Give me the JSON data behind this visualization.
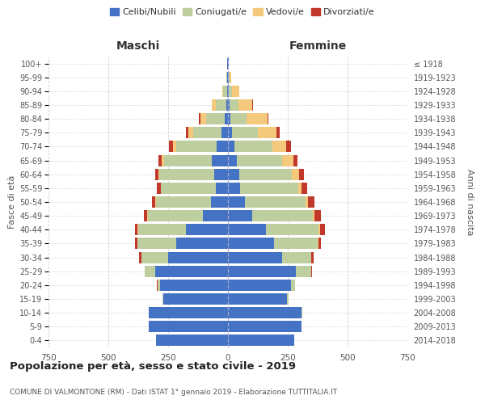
{
  "age_groups": [
    "0-4",
    "5-9",
    "10-14",
    "15-19",
    "20-24",
    "25-29",
    "30-34",
    "35-39",
    "40-44",
    "45-49",
    "50-54",
    "55-59",
    "60-64",
    "65-69",
    "70-74",
    "75-79",
    "80-84",
    "85-89",
    "90-94",
    "95-99",
    "100+"
  ],
  "birth_years": [
    "2014-2018",
    "2009-2013",
    "2004-2008",
    "1999-2003",
    "1994-1998",
    "1989-1993",
    "1984-1988",
    "1979-1983",
    "1974-1978",
    "1969-1973",
    "1964-1968",
    "1959-1963",
    "1954-1958",
    "1949-1953",
    "1944-1948",
    "1939-1943",
    "1934-1938",
    "1929-1933",
    "1924-1928",
    "1919-1923",
    "≤ 1918"
  ],
  "maschi": {
    "celibi": [
      300,
      330,
      330,
      270,
      285,
      305,
      250,
      215,
      175,
      105,
      72,
      52,
      58,
      68,
      48,
      28,
      14,
      8,
      5,
      3,
      2
    ],
    "coniugati": [
      0,
      1,
      2,
      3,
      10,
      42,
      112,
      162,
      200,
      230,
      230,
      228,
      228,
      198,
      168,
      118,
      78,
      44,
      14,
      4,
      1
    ],
    "vedovi": [
      0,
      0,
      0,
      0,
      0,
      0,
      1,
      1,
      2,
      2,
      2,
      2,
      5,
      10,
      15,
      20,
      24,
      14,
      5,
      1,
      0
    ],
    "divorziati": [
      0,
      0,
      0,
      0,
      1,
      2,
      8,
      10,
      12,
      15,
      14,
      14,
      14,
      14,
      14,
      9,
      4,
      2,
      0,
      0,
      0
    ]
  },
  "femmine": {
    "nubili": [
      278,
      308,
      308,
      248,
      265,
      285,
      225,
      192,
      158,
      102,
      72,
      52,
      48,
      38,
      28,
      16,
      9,
      7,
      4,
      3,
      2
    ],
    "coniugate": [
      0,
      1,
      2,
      4,
      15,
      62,
      122,
      182,
      222,
      252,
      252,
      242,
      220,
      188,
      158,
      108,
      68,
      38,
      14,
      4,
      1
    ],
    "vedove": [
      0,
      0,
      0,
      0,
      0,
      1,
      2,
      3,
      5,
      8,
      10,
      14,
      28,
      48,
      58,
      78,
      88,
      58,
      28,
      8,
      2
    ],
    "divorziate": [
      0,
      0,
      0,
      0,
      1,
      2,
      8,
      12,
      20,
      25,
      28,
      24,
      20,
      18,
      18,
      14,
      4,
      2,
      1,
      0,
      0
    ]
  },
  "colors": {
    "celibi": "#4472C4",
    "coniugati": "#BFCE9E",
    "vedovi": "#F5C97C",
    "divorziati": "#C0392B"
  },
  "title": "Popolazione per età, sesso e stato civile - 2019",
  "subtitle": "COMUNE DI VALMONTONE (RM) - Dati ISTAT 1° gennaio 2019 - Elaborazione TUTTITALIA.IT",
  "ylabel_left": "Fasce di età",
  "ylabel_right": "Anni di nascita",
  "xlabel_left": "Maschi",
  "xlabel_right": "Femmine",
  "xlim": 750,
  "background_color": "#ffffff",
  "grid_color": "#d0d0d0"
}
